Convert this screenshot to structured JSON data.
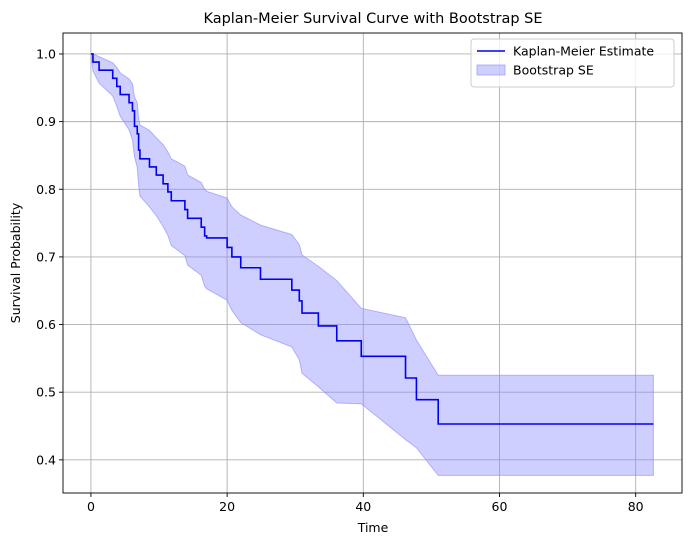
{
  "chart_data": {
    "type": "line",
    "title": "Kaplan-Meier Survival Curve with Bootstrap SE",
    "xlabel": "Time",
    "ylabel": "Survival Probability",
    "xlim": [
      -4.1,
      86.8
    ],
    "ylim": [
      0.351,
      1.031
    ],
    "xticks": [
      0,
      20,
      40,
      60,
      80
    ],
    "xtick_labels": [
      "0",
      "20",
      "40",
      "60",
      "80"
    ],
    "yticks": [
      0.4,
      0.5,
      0.6,
      0.7,
      0.8,
      0.9,
      1.0
    ],
    "ytick_labels": [
      "0.4",
      "0.5",
      "0.6",
      "0.7",
      "0.8",
      "0.9",
      "1.0"
    ],
    "grid": true,
    "legend_position": "top-right",
    "legend": [
      "Kaplan-Meier Estimate",
      "Bootstrap SE"
    ],
    "colors": {
      "line": "#0000ee",
      "band": "#8888ff"
    },
    "series": [
      {
        "name": "Kaplan-Meier Estimate",
        "kind": "step",
        "x": [
          0,
          0.3,
          1.2,
          3.2,
          3.8,
          4.3,
          5.6,
          6.1,
          6.4,
          6.8,
          7.0,
          7.2,
          8.6,
          9.6,
          10.6,
          11.3,
          11.8,
          13.8,
          14.2,
          16.2,
          16.7,
          17.0,
          20.0,
          20.7,
          22.0,
          24.9,
          29.5,
          30.6,
          31.0,
          33.4,
          36.1,
          39.7,
          46.2,
          47.8,
          51.0,
          82.6
        ],
        "y": [
          1.0,
          0.988,
          0.976,
          0.964,
          0.952,
          0.94,
          0.928,
          0.916,
          0.893,
          0.882,
          0.858,
          0.845,
          0.833,
          0.821,
          0.808,
          0.796,
          0.783,
          0.77,
          0.757,
          0.744,
          0.731,
          0.728,
          0.714,
          0.7,
          0.684,
          0.667,
          0.651,
          0.635,
          0.617,
          0.598,
          0.576,
          0.553,
          0.521,
          0.489,
          0.453,
          0.453
        ]
      },
      {
        "name": "Bootstrap SE",
        "kind": "band",
        "x": [
          0,
          0.3,
          1.2,
          3.2,
          3.8,
          4.3,
          5.6,
          6.1,
          6.4,
          6.8,
          7.0,
          7.2,
          8.6,
          9.6,
          10.6,
          11.3,
          11.8,
          13.8,
          14.2,
          16.2,
          16.7,
          17.0,
          20.0,
          20.7,
          22.0,
          24.9,
          29.5,
          30.6,
          31.0,
          33.4,
          36.1,
          39.7,
          46.2,
          47.8,
          51.0,
          82.6
        ],
        "lower": [
          1.0,
          0.975,
          0.957,
          0.938,
          0.923,
          0.908,
          0.888,
          0.873,
          0.848,
          0.833,
          0.807,
          0.79,
          0.774,
          0.761,
          0.745,
          0.732,
          0.717,
          0.702,
          0.688,
          0.673,
          0.657,
          0.653,
          0.636,
          0.621,
          0.603,
          0.585,
          0.567,
          0.548,
          0.528,
          0.508,
          0.484,
          0.483,
          0.43,
          0.418,
          0.377,
          0.377
        ],
        "upper": [
          1.0,
          1.0,
          0.996,
          0.987,
          0.98,
          0.972,
          0.963,
          0.956,
          0.936,
          0.928,
          0.905,
          0.895,
          0.887,
          0.876,
          0.866,
          0.855,
          0.845,
          0.834,
          0.821,
          0.81,
          0.8,
          0.797,
          0.787,
          0.774,
          0.762,
          0.747,
          0.733,
          0.718,
          0.703,
          0.686,
          0.665,
          0.624,
          0.61,
          0.577,
          0.525,
          0.525
        ]
      }
    ]
  }
}
